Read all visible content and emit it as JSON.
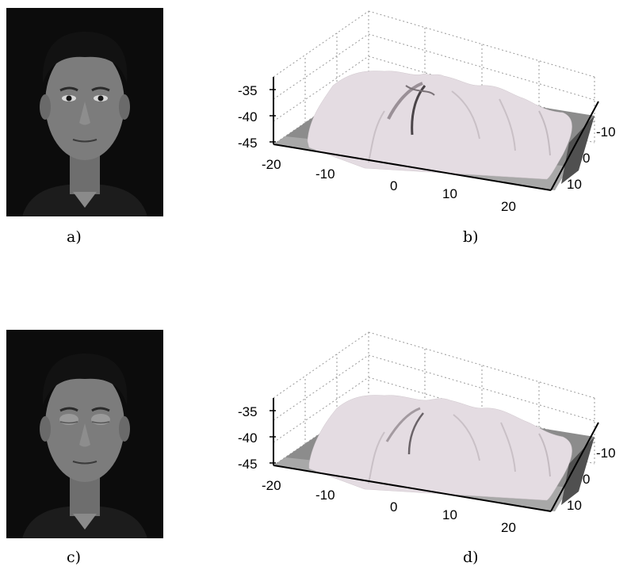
{
  "figure": {
    "panels": [
      {
        "id": "a",
        "label": "a)",
        "kind": "photo",
        "eyes": "open"
      },
      {
        "id": "b",
        "label": "b)",
        "kind": "surface"
      },
      {
        "id": "c",
        "label": "c)",
        "kind": "photo",
        "eyes": "closed"
      },
      {
        "id": "d",
        "label": "d)",
        "kind": "surface"
      }
    ]
  },
  "chart_data": [
    {
      "type": "surface",
      "panel": "b",
      "z_ticks": [
        "-35",
        "-40",
        "-45"
      ],
      "x_ticks": [
        "-20",
        "-10",
        "0",
        "10",
        "20"
      ],
      "y_ticks": [
        "-10",
        "0",
        "10"
      ],
      "zlim": [
        -45,
        -32
      ],
      "xlim": [
        -20,
        25
      ],
      "ylim": [
        -15,
        12
      ],
      "grid": true,
      "surface_color": "#e4dce2"
    },
    {
      "type": "surface",
      "panel": "d",
      "z_ticks": [
        "-35",
        "-40",
        "-45"
      ],
      "x_ticks": [
        "-20",
        "-10",
        "0",
        "10",
        "20"
      ],
      "y_ticks": [
        "-10",
        "0",
        "10"
      ],
      "zlim": [
        -45,
        -32
      ],
      "xlim": [
        -20,
        25
      ],
      "ylim": [
        -15,
        12
      ],
      "grid": true,
      "surface_color": "#e4dce2"
    }
  ]
}
